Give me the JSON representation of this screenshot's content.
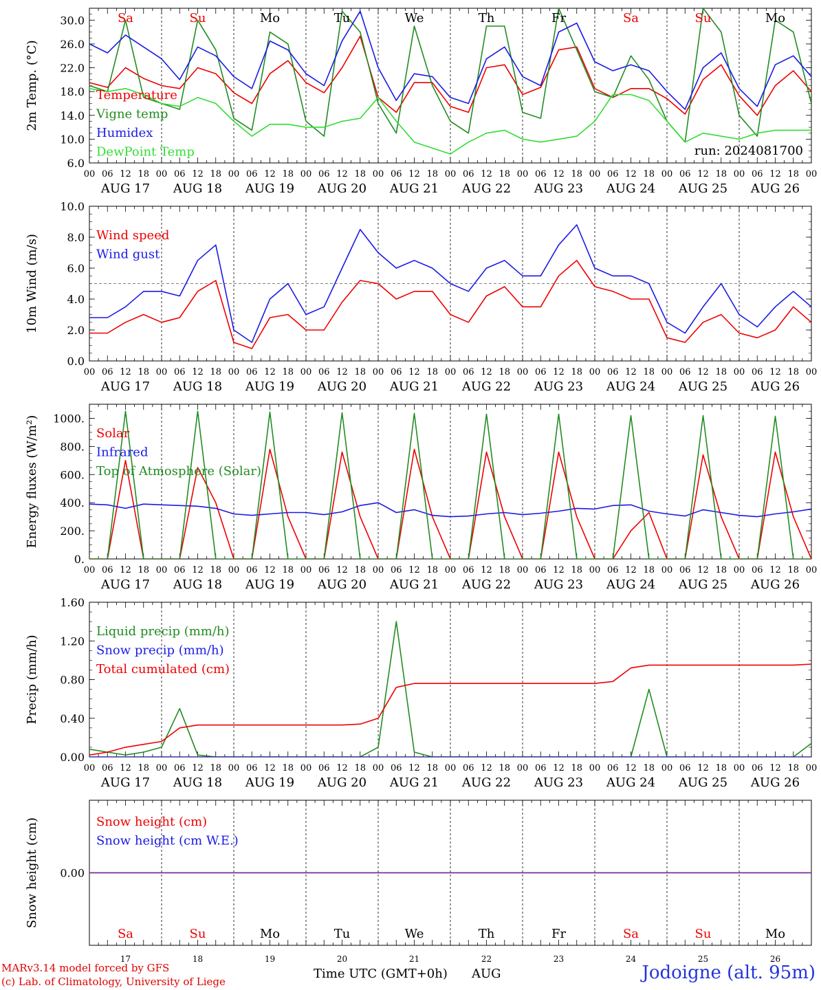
{
  "page": {
    "credit_line1": "MARv3.14 model forced by GFS",
    "credit_line2": "(c) Lab. of Climatology, University of Liege",
    "xaxis_title": "Time UTC (GMT+0h)",
    "month_label": "AUG",
    "station": "Jodoigne (alt. 95m)",
    "run_label": "run: 2024081700"
  },
  "colors": {
    "red": "#ee0000",
    "green": "#228b22",
    "blue": "#1a1ae6",
    "light_green": "#33dd33",
    "purple": "#7a2a9a",
    "weekend": "#ee0000",
    "weekday": "#000000"
  },
  "chart_data": {
    "days": [
      {
        "abbr": "Sa",
        "date": "AUG 17",
        "num": "17",
        "weekend": true
      },
      {
        "abbr": "Su",
        "date": "AUG 18",
        "num": "18",
        "weekend": true
      },
      {
        "abbr": "Mo",
        "date": "AUG 19",
        "num": "19",
        "weekend": false
      },
      {
        "abbr": "Tu",
        "date": "AUG 20",
        "num": "20",
        "weekend": false
      },
      {
        "abbr": "We",
        "date": "AUG 21",
        "num": "21",
        "weekend": false
      },
      {
        "abbr": "Th",
        "date": "AUG 22",
        "num": "22",
        "weekend": false
      },
      {
        "abbr": "Fr",
        "date": "AUG 23",
        "num": "23",
        "weekend": false
      },
      {
        "abbr": "Sa",
        "date": "AUG 24",
        "num": "24",
        "weekend": true
      },
      {
        "abbr": "Su",
        "date": "AUG 25",
        "num": "25",
        "weekend": true
      },
      {
        "abbr": "Mo",
        "date": "AUG 26",
        "num": "26",
        "weekend": false
      }
    ],
    "hour_labels": [
      "00",
      "06",
      "12",
      "18"
    ],
    "x_hours": [
      0,
      6,
      12,
      18,
      24,
      30,
      36,
      42,
      48,
      54,
      60,
      66,
      72,
      78,
      84,
      90,
      96,
      102,
      108,
      114,
      120,
      126,
      132,
      138,
      144,
      150,
      156,
      162,
      168,
      174,
      180,
      186,
      192,
      198,
      204,
      210,
      216,
      222,
      228,
      234,
      240
    ],
    "panels": [
      {
        "id": "temp",
        "type": "line",
        "ylabel": "2m Temp. (°C)",
        "ylim": [
          6,
          32
        ],
        "yticks": [
          6,
          10,
          14,
          18,
          22,
          26,
          30
        ],
        "ytick_labels": [
          "6.0",
          "10.0",
          "14.0",
          "18.0",
          "22.0",
          "26.0",
          "30.0"
        ],
        "show_days": true,
        "series": [
          {
            "name": "Temperature",
            "color": "red",
            "values": [
              19.5,
              18.7,
              22.0,
              20.2,
              19.0,
              18.5,
              22.0,
              21.0,
              17.8,
              16.0,
              21.0,
              23.2,
              19.5,
              17.8,
              22.0,
              27.3,
              17.0,
              14.5,
              19.5,
              19.5,
              15.5,
              14.5,
              22.0,
              22.5,
              17.5,
              18.7,
              25.0,
              25.5,
              18.5,
              17.0,
              18.5,
              18.5,
              16.8,
              14.2,
              20.0,
              22.5,
              17.3,
              14.0,
              19.0,
              21.5,
              18.0
            ]
          },
          {
            "name": "Vigne temp",
            "color": "green",
            "values": [
              19.0,
              18.0,
              30.0,
              17.0,
              16.0,
              15.0,
              30.0,
              25.0,
              13.5,
              11.5,
              28.0,
              26.0,
              13.0,
              10.5,
              31.5,
              28.0,
              16.0,
              11.0,
              29.0,
              19.0,
              13.0,
              11.0,
              29.0,
              29.0,
              14.5,
              13.5,
              32.0,
              25.0,
              18.0,
              17.0,
              24.0,
              20.0,
              13.0,
              9.5,
              32.0,
              28.0,
              14.0,
              10.5,
              30.0,
              28.0,
              16.0
            ]
          },
          {
            "name": "Humidex",
            "color": "blue",
            "values": [
              26.0,
              24.5,
              27.5,
              25.5,
              23.5,
              20.0,
              25.5,
              24.0,
              20.5,
              18.5,
              26.5,
              25.0,
              21.0,
              19.0,
              26.5,
              31.5,
              22.0,
              16.5,
              21.0,
              20.5,
              17.0,
              16.0,
              23.5,
              25.5,
              20.5,
              19.0,
              28.0,
              29.5,
              23.0,
              21.5,
              22.5,
              21.5,
              18.0,
              15.0,
              22.0,
              24.5,
              18.5,
              15.5,
              22.5,
              24.0,
              20.5
            ]
          },
          {
            "name": "DewPoint Temp",
            "color": "light_green",
            "values": [
              18.5,
              18.0,
              18.5,
              17.5,
              16.0,
              15.5,
              17.0,
              16.0,
              13.0,
              10.5,
              12.5,
              12.5,
              12.0,
              12.0,
              13.0,
              13.5,
              17.0,
              13.0,
              9.5,
              8.5,
              7.5,
              9.5,
              11.0,
              11.5,
              10.0,
              9.5,
              10.0,
              10.5,
              13.0,
              17.5,
              17.5,
              16.5,
              13.0,
              9.5,
              11.0,
              10.5,
              10.0,
              11.0,
              11.5,
              11.5,
              11.5
            ]
          }
        ]
      },
      {
        "id": "wind",
        "type": "line",
        "ylabel": "10m Wind (m/s)",
        "ylim": [
          0,
          10
        ],
        "yticks": [
          0,
          2,
          4,
          6,
          8,
          10
        ],
        "ytick_labels": [
          "0.0",
          "2.0",
          "4.0",
          "6.0",
          "8.0",
          "10.0"
        ],
        "reference_line": 5,
        "show_days": false,
        "series": [
          {
            "name": "Wind speed",
            "color": "red",
            "values": [
              1.8,
              1.8,
              2.5,
              3.0,
              2.5,
              2.8,
              4.5,
              5.2,
              1.2,
              0.8,
              2.8,
              3.0,
              2.0,
              2.0,
              3.8,
              5.2,
              5.0,
              4.0,
              4.5,
              4.5,
              3.0,
              2.5,
              4.2,
              4.8,
              3.5,
              3.5,
              5.5,
              6.5,
              4.8,
              4.5,
              4.0,
              4.0,
              1.5,
              1.2,
              2.5,
              3.0,
              1.8,
              1.5,
              2.0,
              3.5,
              2.5
            ]
          },
          {
            "name": "Wind gust",
            "color": "blue",
            "values": [
              2.8,
              2.8,
              3.5,
              4.5,
              4.5,
              4.2,
              6.5,
              7.5,
              2.0,
              1.2,
              4.0,
              5.0,
              3.0,
              3.5,
              6.0,
              8.5,
              7.0,
              6.0,
              6.5,
              6.0,
              5.0,
              4.5,
              6.0,
              6.5,
              5.5,
              5.5,
              7.5,
              8.8,
              6.0,
              5.5,
              5.5,
              5.0,
              2.5,
              1.8,
              3.5,
              5.0,
              3.0,
              2.2,
              3.5,
              4.5,
              3.5
            ]
          }
        ]
      },
      {
        "id": "energy",
        "type": "line",
        "ylabel": "Energy fluxes (W/m²)",
        "ylim": [
          0,
          1100
        ],
        "yticks": [
          0,
          200,
          400,
          600,
          800,
          1000
        ],
        "ytick_labels": [
          "0.",
          "200.",
          "400.",
          "600.",
          "800.",
          "1000."
        ],
        "show_days": false,
        "series": [
          {
            "name": "Solar",
            "color": "red",
            "values": [
              0,
              0,
              700,
              0,
              0,
              0,
              650,
              400,
              0,
              0,
              780,
              300,
              0,
              0,
              760,
              300,
              0,
              0,
              780,
              300,
              0,
              0,
              760,
              300,
              0,
              0,
              760,
              300,
              0,
              0,
              200,
              330,
              0,
              0,
              740,
              300,
              0,
              0,
              760,
              300,
              0
            ]
          },
          {
            "name": "Infrared",
            "color": "blue",
            "values": [
              390,
              385,
              360,
              390,
              385,
              380,
              375,
              360,
              320,
              310,
              320,
              330,
              330,
              315,
              335,
              380,
              400,
              330,
              350,
              310,
              300,
              305,
              320,
              330,
              315,
              325,
              340,
              360,
              355,
              380,
              385,
              340,
              320,
              305,
              350,
              330,
              310,
              300,
              320,
              335,
              355
            ]
          },
          {
            "name": "Top of Atmosphere (Solar)",
            "color": "green",
            "values": [
              0,
              0,
              1050,
              0,
              0,
              0,
              1050,
              0,
              0,
              0,
              1045,
              0,
              0,
              0,
              1040,
              0,
              0,
              0,
              1035,
              0,
              0,
              0,
              1030,
              0,
              0,
              0,
              1030,
              0,
              0,
              0,
              1020,
              0,
              0,
              0,
              1020,
              0,
              0,
              0,
              1015,
              0,
              0
            ]
          }
        ]
      },
      {
        "id": "precip",
        "type": "line",
        "ylabel": "Precip (mm/h)",
        "ylim": [
          0,
          1.6
        ],
        "yticks": [
          0,
          0.4,
          0.8,
          1.2,
          1.6
        ],
        "ytick_labels": [
          "0.00",
          "0.40",
          "0.80",
          "1.20",
          "1.60"
        ],
        "show_days": false,
        "series": [
          {
            "name": "Liquid precip (mm/h)",
            "color": "green",
            "values": [
              0.08,
              0.05,
              0.02,
              0.05,
              0.1,
              0.5,
              0.02,
              0,
              0,
              0,
              0,
              0,
              0,
              0,
              0,
              0,
              0.1,
              1.4,
              0.05,
              0,
              0,
              0,
              0,
              0,
              0,
              0,
              0,
              0,
              0,
              0,
              0,
              0.7,
              0,
              0,
              0,
              0,
              0,
              0,
              0,
              0,
              0.14
            ]
          },
          {
            "name": "Snow precip (mm/h)",
            "color": "blue",
            "values": [
              0,
              0,
              0,
              0,
              0,
              0,
              0,
              0,
              0,
              0,
              0,
              0,
              0,
              0,
              0,
              0,
              0,
              0,
              0,
              0,
              0,
              0,
              0,
              0,
              0,
              0,
              0,
              0,
              0,
              0,
              0,
              0,
              0,
              0,
              0,
              0,
              0,
              0,
              0,
              0,
              0
            ]
          },
          {
            "name": "Total cumulated (cm)",
            "color": "red",
            "values": [
              0.02,
              0.05,
              0.1,
              0.13,
              0.16,
              0.3,
              0.33,
              0.33,
              0.33,
              0.33,
              0.33,
              0.33,
              0.33,
              0.33,
              0.33,
              0.34,
              0.4,
              0.72,
              0.76,
              0.76,
              0.76,
              0.76,
              0.76,
              0.76,
              0.76,
              0.76,
              0.76,
              0.76,
              0.76,
              0.78,
              0.92,
              0.95,
              0.95,
              0.95,
              0.95,
              0.95,
              0.95,
              0.95,
              0.95,
              0.95,
              0.96
            ]
          }
        ]
      },
      {
        "id": "snow",
        "type": "line",
        "ylabel": "Snow height (cm)",
        "ylim": [
          -1,
          1
        ],
        "yticks": [
          0
        ],
        "ytick_labels": [
          "0.00"
        ],
        "show_days": false,
        "series": [
          {
            "name": "Snow height (cm)",
            "color": "red",
            "values": [
              0,
              0,
              0,
              0,
              0,
              0,
              0,
              0,
              0,
              0,
              0,
              0,
              0,
              0,
              0,
              0,
              0,
              0,
              0,
              0,
              0,
              0,
              0,
              0,
              0,
              0,
              0,
              0,
              0,
              0,
              0,
              0,
              0,
              0,
              0,
              0,
              0,
              0,
              0,
              0,
              0
            ]
          },
          {
            "name": "Snow height (cm W.E.)",
            "color": "blue",
            "values": [
              0,
              0,
              0,
              0,
              0,
              0,
              0,
              0,
              0,
              0,
              0,
              0,
              0,
              0,
              0,
              0,
              0,
              0,
              0,
              0,
              0,
              0,
              0,
              0,
              0,
              0,
              0,
              0,
              0,
              0,
              0,
              0,
              0,
              0,
              0,
              0,
              0,
              0,
              0,
              0,
              0
            ]
          }
        ]
      }
    ]
  }
}
